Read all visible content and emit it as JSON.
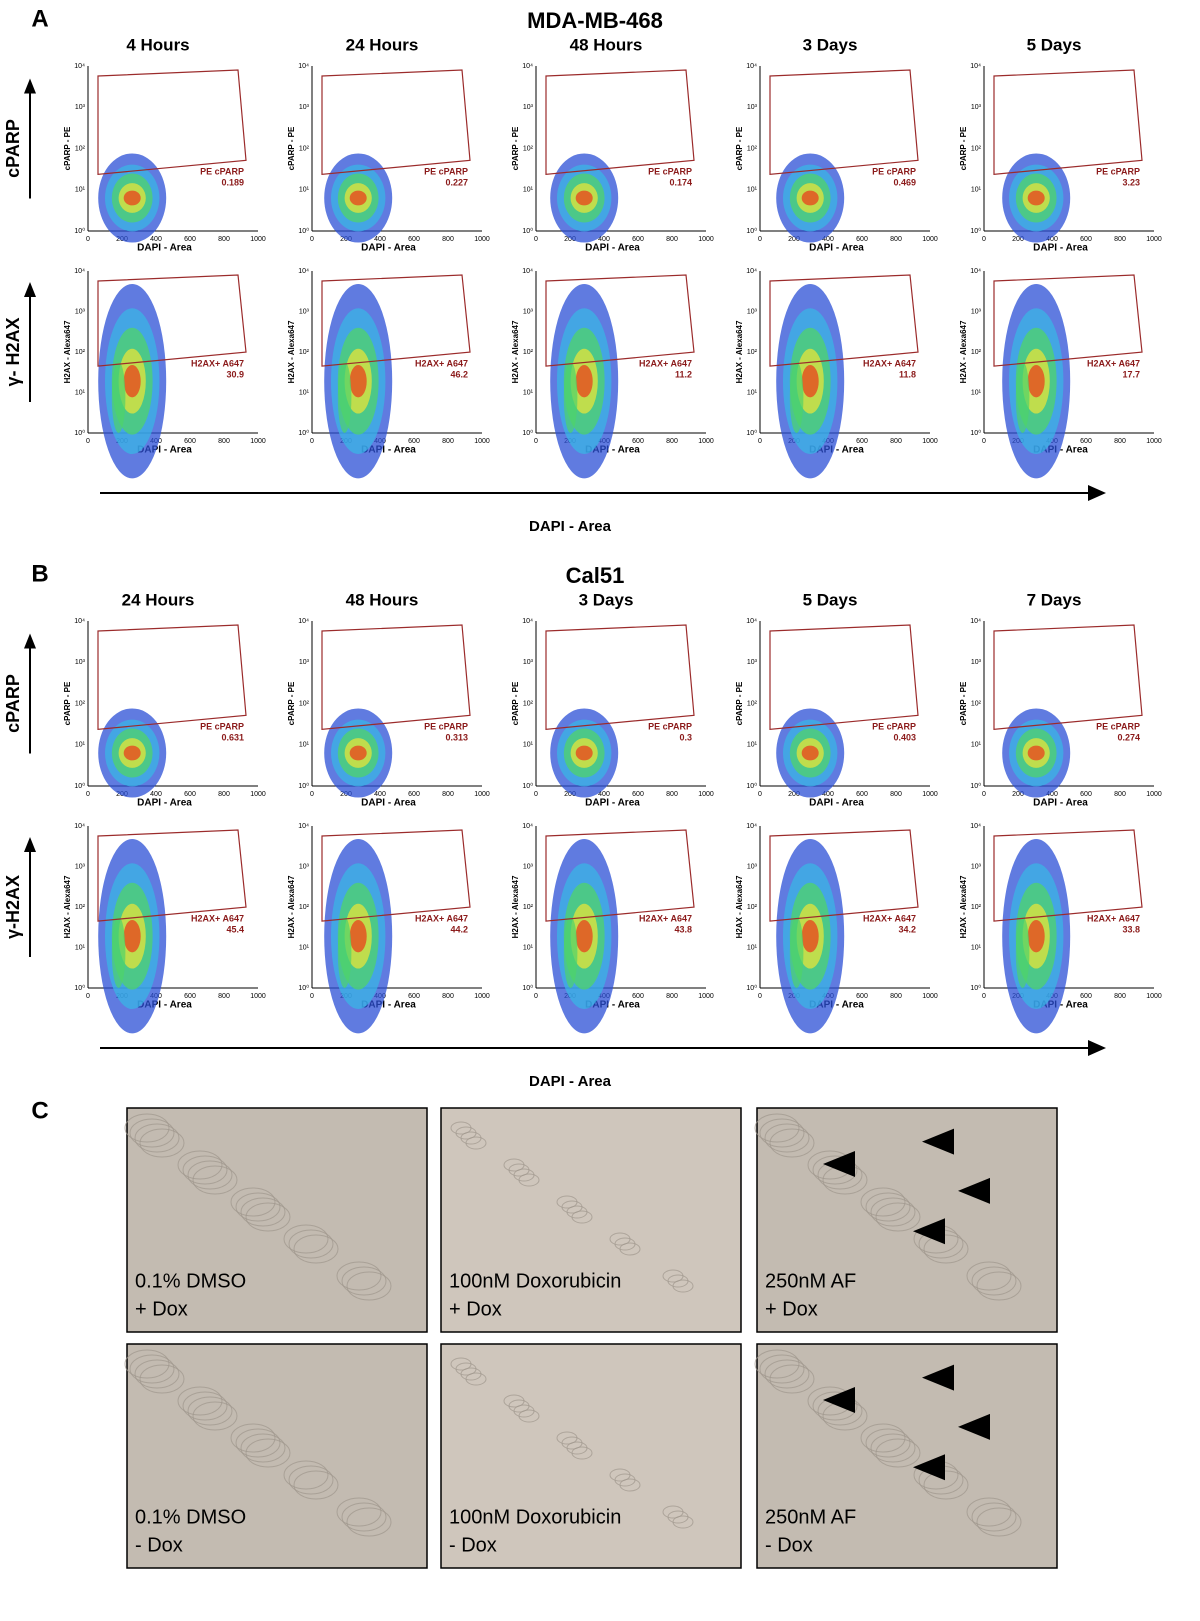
{
  "panel_a": {
    "letter": "A",
    "title": "MDA-MB-468",
    "columns": [
      "4 Hours",
      "24 Hours",
      "48 Hours",
      "3 Days",
      "5 Days"
    ],
    "rows": [
      {
        "label": "cPARP",
        "y_axis": "cPARP - PE",
        "gate_name": "PE cPARP",
        "gate_values": [
          0.189,
          0.227,
          0.174,
          0.469,
          3.23
        ]
      },
      {
        "label": "γ- H2AX",
        "y_axis": "H2AX - Alexa647",
        "gate_name": "H2AX+ A647",
        "gate_values": [
          30.9,
          46.2,
          11.2,
          11.8,
          17.7
        ]
      }
    ],
    "x_axis": "DAPI - Area",
    "bottom_label": "DAPI - Area"
  },
  "panel_b": {
    "letter": "B",
    "title": "Cal51",
    "columns": [
      "24 Hours",
      "48 Hours",
      "3 Days",
      "5 Days",
      "7 Days"
    ],
    "rows": [
      {
        "label": "cPARP",
        "y_axis": "cPARP - PE",
        "gate_name": "PE cPARP",
        "gate_values": [
          0.631,
          0.313,
          0.3,
          0.403,
          0.274
        ]
      },
      {
        "label": "γ-H2AX",
        "y_axis": "H2AX - Alexa647",
        "gate_name": "H2AX+ A647",
        "gate_values": [
          45.4,
          44.2,
          43.8,
          34.2,
          33.8
        ]
      }
    ],
    "x_axis": "DAPI - Area",
    "bottom_label": "DAPI - Area"
  },
  "x_ticks": [
    0,
    200,
    400,
    600,
    800,
    1000
  ],
  "y_ticks": [
    "10⁰",
    "10¹",
    "10²",
    "10³",
    "10⁴"
  ],
  "panel_c": {
    "letter": "C",
    "images": [
      [
        "0.1% DMSO",
        "+ Dox"
      ],
      [
        "100nM Doxorubicin",
        "+ Dox"
      ],
      [
        "250nM AF",
        "+ Dox"
      ],
      [
        "0.1% DMSO",
        "- Dox"
      ],
      [
        "100nM Doxorubicin",
        "- Dox"
      ],
      [
        "250nM AF",
        "- Dox"
      ]
    ]
  }
}
